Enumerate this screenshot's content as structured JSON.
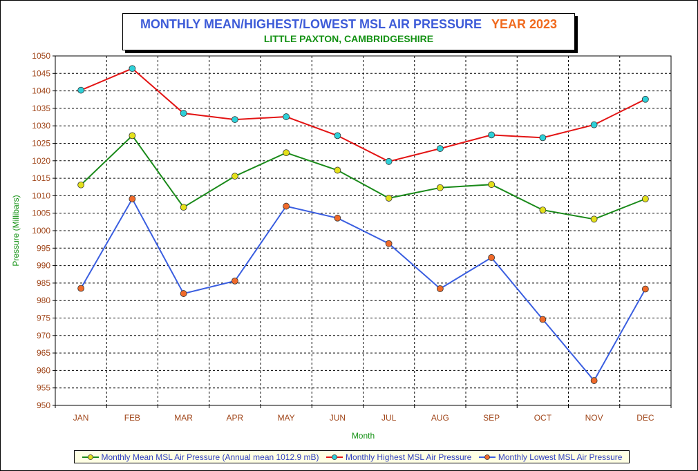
{
  "title": {
    "main": "MONTHLY MEAN/HIGHEST/LOWEST MSL AIR PRESSURE",
    "year": "YEAR 2023",
    "subtitle": "LITTLE PAXTON, CAMBRIDGESHIRE"
  },
  "colors": {
    "title_main": "#3d5bd8",
    "title_year": "#f06a1e",
    "subtitle": "#139113",
    "mean_line": "#1a8a1a",
    "mean_marker": "#e3e01a",
    "highest_line": "#e31414",
    "highest_marker": "#2ed0d8",
    "lowest_line": "#3a5ee0",
    "lowest_marker": "#f06a2a",
    "tick_labels": "#a0461a",
    "axis_titles": "#139113"
  },
  "chart_data": {
    "type": "line",
    "xlabel": "Month",
    "ylabel": "Pressure (Millibars)",
    "ylim": [
      950,
      1050
    ],
    "ytick_step": 5,
    "grid": true,
    "legend_position": "bottom",
    "categories": [
      "JAN",
      "FEB",
      "MAR",
      "APR",
      "MAY",
      "JUN",
      "JUL",
      "AUG",
      "SEP",
      "OCT",
      "NOV",
      "DEC"
    ],
    "series": [
      {
        "name": "Monthly Mean MSL Air Pressure (Annual mean 1012.9 mB)",
        "key": "mean",
        "values": [
          1013.1,
          1027.2,
          1006.7,
          1015.6,
          1022.3,
          1017.3,
          1009.3,
          1012.3,
          1013.2,
          1005.9,
          1003.3,
          1009.1
        ]
      },
      {
        "name": "Monthly Highest MSL Air Pressure",
        "key": "highest",
        "values": [
          1040.2,
          1046.4,
          1033.6,
          1031.8,
          1032.6,
          1027.2,
          1019.8,
          1023.5,
          1027.4,
          1026.6,
          1030.3,
          1037.6
        ]
      },
      {
        "name": "Monthly Lowest MSL Air Pressure",
        "key": "lowest",
        "values": [
          983.5,
          1009.1,
          982.0,
          985.6,
          1007.0,
          1003.6,
          996.3,
          983.4,
          992.3,
          974.6,
          957.1,
          983.3
        ]
      }
    ]
  }
}
